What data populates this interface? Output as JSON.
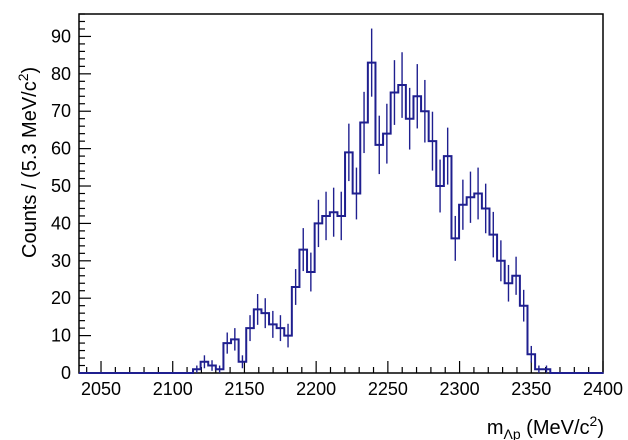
{
  "chart_data": {
    "type": "histogram",
    "xlabel": "m",
    "xlabel_sub": "Λp",
    "xlabel_unit": " (MeV/c",
    "xlabel_unit_sup": "2",
    "xlabel_unit_close": ")",
    "ylabel": "Counts / (5.3 MeV/c",
    "ylabel_sup": "2",
    "ylabel_close": ")",
    "xlim": [
      2034.65,
      2400
    ],
    "ylim": [
      0,
      96
    ],
    "xticks": [
      2050,
      2100,
      2150,
      2200,
      2250,
      2300,
      2350,
      2400
    ],
    "yticks": [
      0,
      10,
      20,
      30,
      40,
      50,
      60,
      70,
      80,
      90
    ],
    "bin_width": 5.3,
    "x_start": 2034.65,
    "values": [
      0,
      0,
      0,
      0,
      0,
      0,
      0,
      0,
      0,
      0,
      0,
      0,
      0,
      0,
      0,
      1,
      3,
      2,
      1,
      8,
      9,
      3,
      12,
      17,
      16,
      13,
      12,
      10,
      23,
      33,
      27,
      40,
      42,
      43,
      42,
      59,
      48,
      67,
      83,
      61,
      64,
      75,
      77,
      68,
      74,
      70,
      62,
      50,
      58,
      36,
      45,
      47,
      48,
      44,
      37,
      30,
      24,
      26,
      18,
      5,
      1,
      1,
      0,
      0,
      0,
      0,
      0,
      0,
      0
    ],
    "line_color": "#1f1f8f",
    "errorbars": true,
    "grid": false
  }
}
